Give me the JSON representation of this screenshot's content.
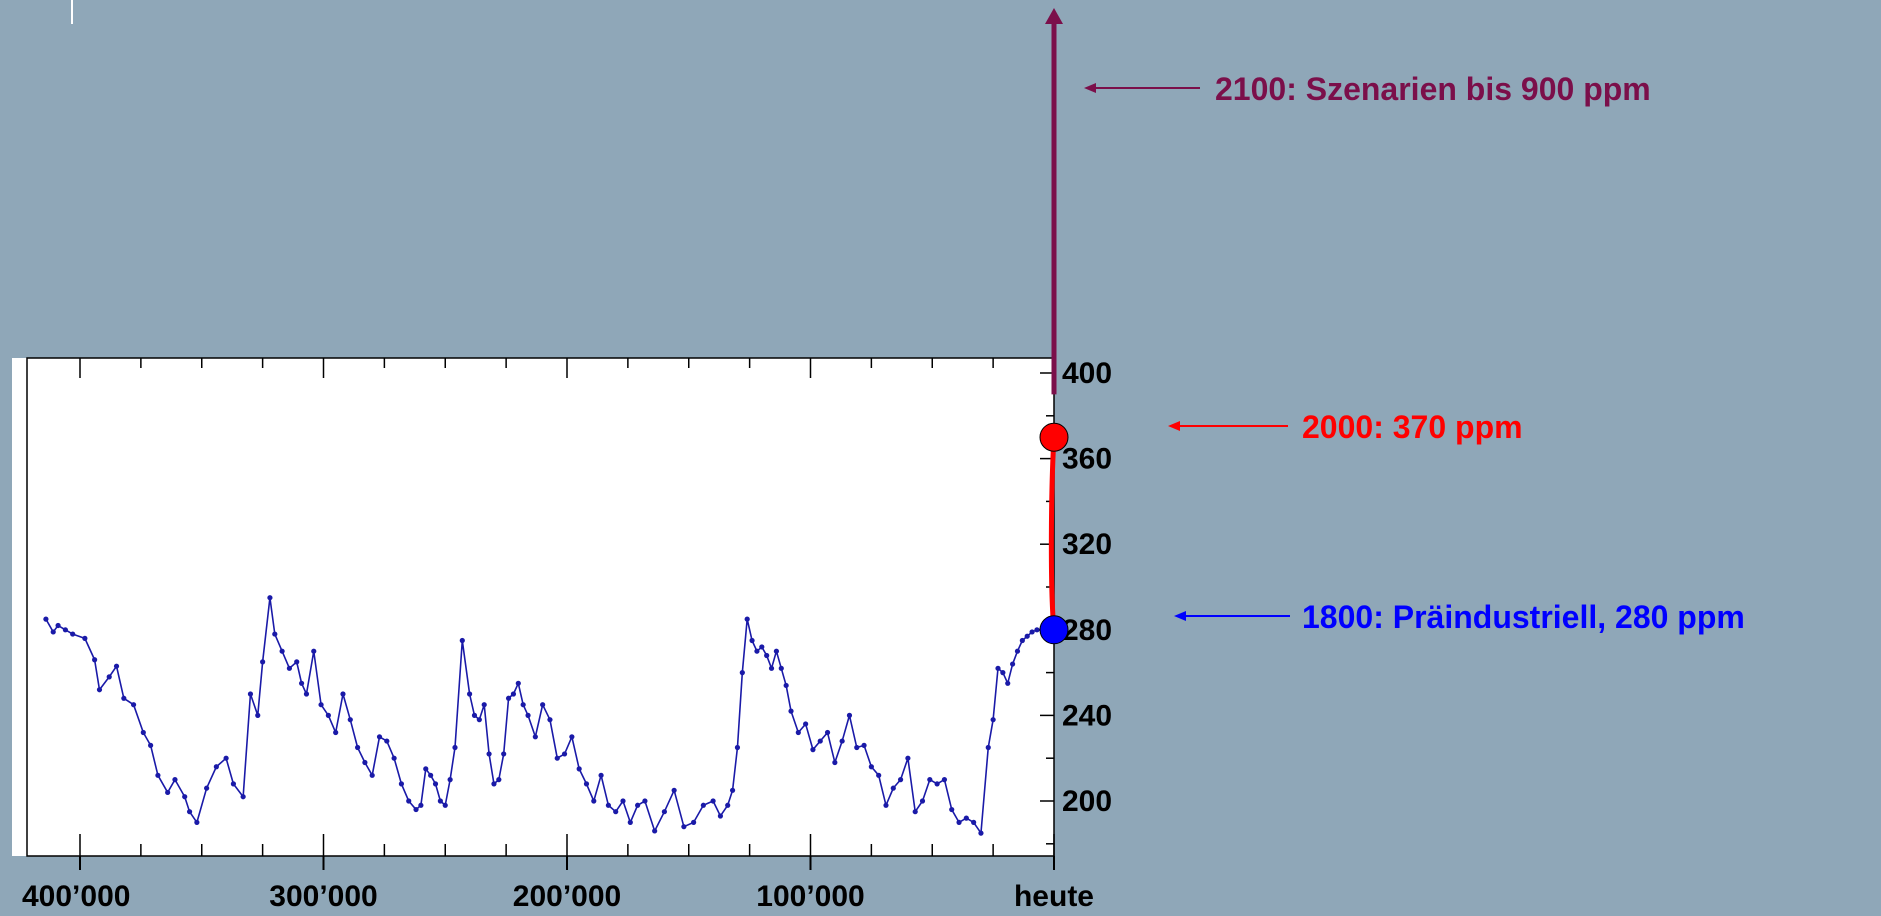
{
  "chart_data": {
    "type": "line",
    "xlim": [
      420000,
      0
    ],
    "ylim": [
      170,
      400
    ],
    "x_tick_labels": [
      {
        "value": 400000,
        "label": "400’000"
      },
      {
        "value": 300000,
        "label": "300’000"
      },
      {
        "value": 200000,
        "label": "200’000"
      },
      {
        "value": 100000,
        "label": "100’000"
      },
      {
        "value": 0,
        "label": "heute"
      }
    ],
    "y_tick_labels": [
      {
        "value": 400,
        "label": "400"
      },
      {
        "value": 360,
        "label": "360"
      },
      {
        "value": 320,
        "label": "320"
      },
      {
        "value": 280,
        "label": "280"
      },
      {
        "value": 240,
        "label": "240"
      },
      {
        "value": 200,
        "label": "200"
      }
    ],
    "grid": false,
    "series": [
      {
        "color": "#1a1aa8",
        "x": [
          414000,
          411000,
          409000,
          406000,
          403000,
          398000,
          394000,
          392000,
          388000,
          385000,
          382000,
          378000,
          374000,
          371000,
          368000,
          364000,
          361000,
          357000,
          355000,
          352000,
          348000,
          344000,
          340000,
          337000,
          333000,
          330000,
          327000,
          325000,
          322000,
          320000,
          317000,
          314000,
          311000,
          309000,
          307000,
          304000,
          301000,
          298000,
          295000,
          292000,
          289000,
          286000,
          283000,
          280000,
          277000,
          274000,
          271000,
          268000,
          265000,
          262000,
          260000,
          258000,
          256000,
          254000,
          252000,
          250000,
          248000,
          246000,
          243000,
          240000,
          238000,
          236000,
          234000,
          232000,
          230000,
          228000,
          226000,
          224000,
          222000,
          220000,
          218000,
          216000,
          213000,
          210000,
          207000,
          204000,
          201000,
          198000,
          195000,
          192000,
          189000,
          186000,
          183000,
          180000,
          177000,
          174000,
          171000,
          168000,
          164000,
          160000,
          156000,
          152000,
          148000,
          144000,
          140000,
          137000,
          134000,
          132000,
          130000,
          128000,
          126000,
          124000,
          122000,
          120000,
          118000,
          116000,
          114000,
          112000,
          110000,
          108000,
          105000,
          102000,
          99000,
          96000,
          93000,
          90000,
          87000,
          84000,
          81000,
          78000,
          75000,
          72000,
          69000,
          66000,
          63000,
          60000,
          57000,
          54000,
          51000,
          48000,
          45000,
          42000,
          39000,
          36000,
          33000,
          30000,
          27000,
          25000,
          23000,
          21000,
          19000,
          17000,
          15000,
          13000,
          11000,
          9000,
          7000,
          5000,
          3000,
          1000
        ],
        "values": [
          285,
          279,
          282,
          280,
          278,
          276,
          266,
          252,
          258,
          263,
          248,
          245,
          232,
          226,
          212,
          204,
          210,
          202,
          195,
          190,
          206,
          216,
          220,
          208,
          202,
          250,
          240,
          265,
          295,
          278,
          270,
          262,
          265,
          255,
          250,
          270,
          245,
          240,
          232,
          250,
          238,
          225,
          218,
          212,
          230,
          228,
          220,
          208,
          200,
          196,
          198,
          215,
          212,
          208,
          200,
          198,
          210,
          225,
          275,
          250,
          240,
          238,
          245,
          222,
          208,
          210,
          222,
          248,
          250,
          255,
          245,
          240,
          230,
          245,
          238,
          220,
          222,
          230,
          215,
          208,
          200,
          212,
          198,
          195,
          200,
          190,
          198,
          200,
          186,
          195,
          205,
          188,
          190,
          198,
          200,
          193,
          198,
          205,
          225,
          260,
          285,
          275,
          270,
          272,
          268,
          262,
          270,
          262,
          254,
          242,
          232,
          236,
          224,
          228,
          232,
          218,
          228,
          240,
          225,
          226,
          216,
          212,
          198,
          206,
          210,
          220,
          195,
          200,
          210,
          208,
          210,
          196,
          190,
          192,
          190,
          185,
          225,
          238,
          262,
          260,
          255,
          264,
          270,
          275,
          277,
          279,
          280,
          280,
          280,
          281
        ]
      }
    ],
    "annotations": [
      {
        "text": "2100: Szenarien bis 900 ppm",
        "color": "#7b0f4a"
      },
      {
        "text": "2000: 370 ppm",
        "color": "#ff0000"
      },
      {
        "text": "1800: Präindustriell, 280 ppm",
        "color": "#0000ff"
      }
    ],
    "markers": [
      {
        "label": "1800",
        "x": 0,
        "y": 280,
        "color": "#0000ff"
      },
      {
        "label": "2000",
        "x": 0,
        "y": 370,
        "color": "#ff0000"
      }
    ],
    "colors": {
      "background": "#8fa7b8",
      "plot_area": "#ffffff",
      "series_line": "#1a1aa8",
      "red_rise": "#ff0000",
      "scenario_arrow": "#7b0f4a",
      "annotation_arrow_red": "#ff0000",
      "annotation_arrow_blue": "#0000ff",
      "annotation_arrow_purple": "#7b0f4a"
    }
  }
}
